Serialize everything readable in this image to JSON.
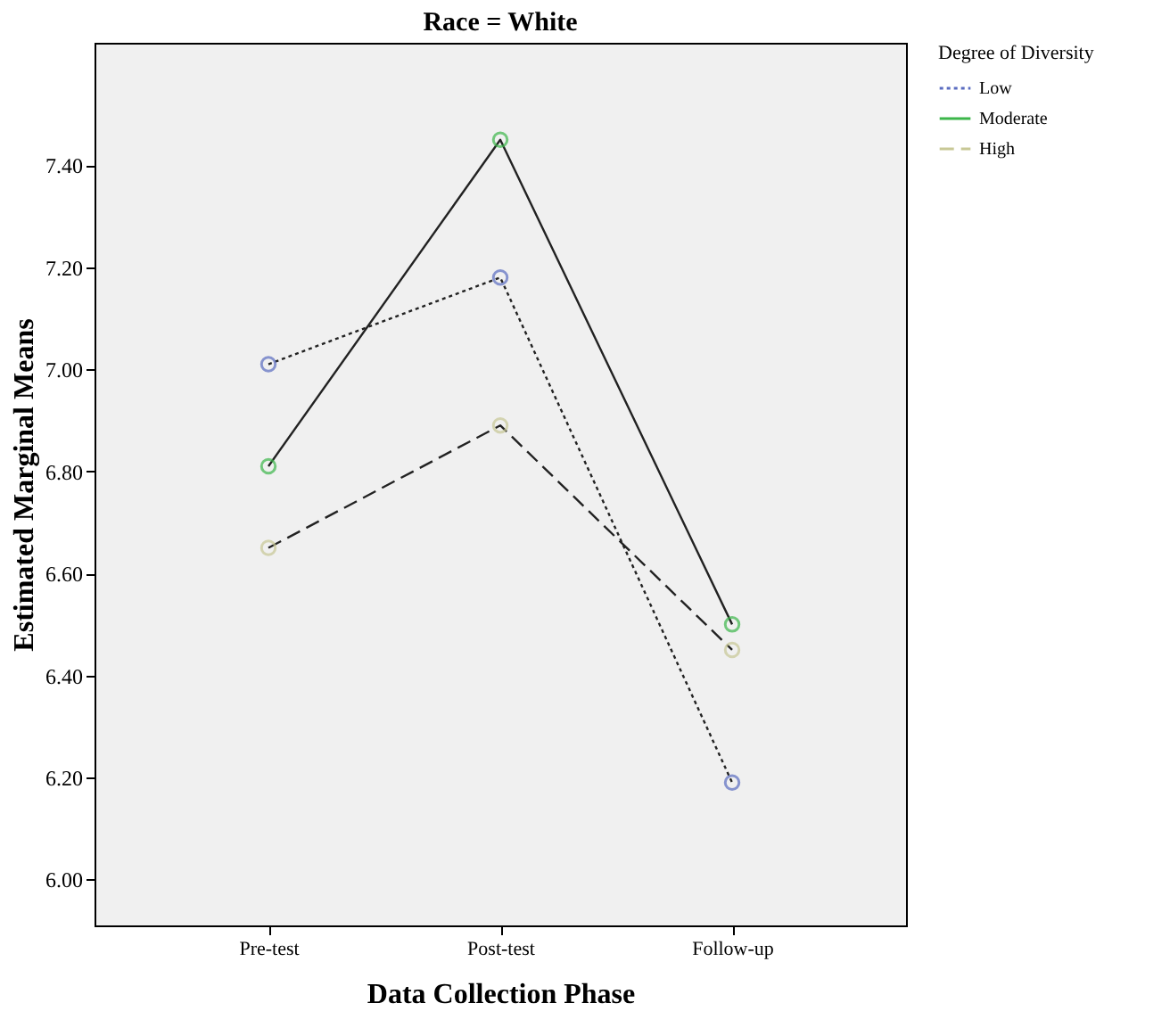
{
  "chart_data": {
    "type": "line",
    "title": "Race = White",
    "xlabel": "Data Collection Phase",
    "ylabel": "Estimated Marginal Means",
    "legend_title": "Degree of Diversity",
    "categories": [
      "Pre-test",
      "Post-test",
      "Follow-up"
    ],
    "series": [
      {
        "name": "Low",
        "color": "#5a6cc0",
        "line_style": "dotted",
        "values": [
          7.01,
          7.18,
          6.19
        ]
      },
      {
        "name": "Moderate",
        "color": "#3cb64a",
        "line_style": "solid",
        "values": [
          6.81,
          7.45,
          6.5
        ]
      },
      {
        "name": "High",
        "color": "#c8c896",
        "line_style": "dashed",
        "values": [
          6.65,
          6.89,
          6.45
        ]
      }
    ],
    "ylim": [
      5.91,
      7.64
    ],
    "yticks": [
      {
        "value": 6.0,
        "label": "6.00"
      },
      {
        "value": 6.2,
        "label": "6.20"
      },
      {
        "value": 6.4,
        "label": "6.40"
      },
      {
        "value": 6.6,
        "label": "6.60"
      },
      {
        "value": 6.8,
        "label": "6.80"
      },
      {
        "value": 7.0,
        "label": "7.00"
      },
      {
        "value": 7.2,
        "label": "7.20"
      },
      {
        "value": 7.4,
        "label": "7.40"
      }
    ],
    "marker": "circle",
    "grid": false,
    "legend": "top right"
  }
}
